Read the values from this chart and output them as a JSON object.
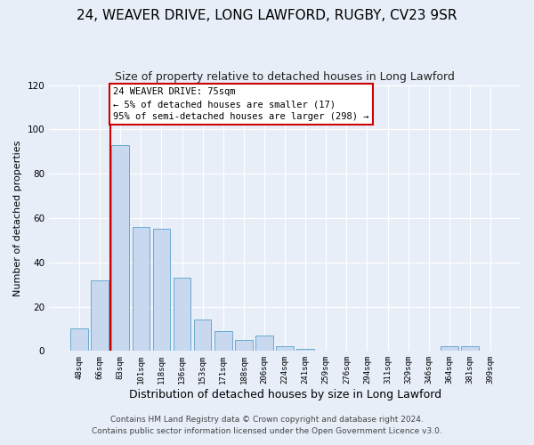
{
  "title1": "24, WEAVER DRIVE, LONG LAWFORD, RUGBY, CV23 9SR",
  "title2": "Size of property relative to detached houses in Long Lawford",
  "xlabel": "Distribution of detached houses by size in Long Lawford",
  "ylabel": "Number of detached properties",
  "footnote1": "Contains HM Land Registry data © Crown copyright and database right 2024.",
  "footnote2": "Contains public sector information licensed under the Open Government Licence v3.0.",
  "bar_labels": [
    "48sqm",
    "66sqm",
    "83sqm",
    "101sqm",
    "118sqm",
    "136sqm",
    "153sqm",
    "171sqm",
    "188sqm",
    "206sqm",
    "224sqm",
    "241sqm",
    "259sqm",
    "276sqm",
    "294sqm",
    "311sqm",
    "329sqm",
    "346sqm",
    "364sqm",
    "381sqm",
    "399sqm"
  ],
  "bar_values": [
    10,
    32,
    93,
    56,
    55,
    33,
    14,
    9,
    5,
    7,
    2,
    1,
    0,
    0,
    0,
    0,
    0,
    0,
    2,
    2,
    0
  ],
  "bar_color": "#c8d8ee",
  "bar_edge_color": "#6aaad4",
  "vline_color": "#cc0000",
  "annotation_title": "24 WEAVER DRIVE: 75sqm",
  "annotation_line1": "← 5% of detached houses are smaller (17)",
  "annotation_line2": "95% of semi-detached houses are larger (298) →",
  "annotation_box_color": "#ffffff",
  "annotation_box_edge_color": "#cc0000",
  "ylim": [
    0,
    120
  ],
  "yticks": [
    0,
    20,
    40,
    60,
    80,
    100,
    120
  ],
  "bg_color": "#e8eef8",
  "plot_bg_color": "#e8eef8",
  "grid_color": "#ffffff",
  "title1_fontsize": 11,
  "title2_fontsize": 9,
  "xlabel_fontsize": 9,
  "ylabel_fontsize": 8,
  "footnote_fontsize": 6.5
}
